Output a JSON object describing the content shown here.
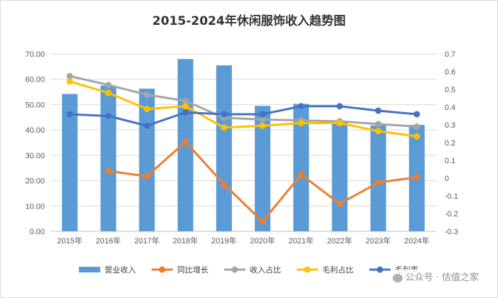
{
  "chart_data": {
    "type": "bar+line",
    "title": "2015-2024年休闲服饰收入趋势图",
    "categories": [
      "2015年",
      "2016年",
      "2017年",
      "2018年",
      "2019年",
      "2020年",
      "2021年",
      "2022年",
      "2023年",
      "2024年"
    ],
    "left_axis": {
      "range": [
        0,
        70
      ],
      "ticks": [
        "0.00",
        "10.00",
        "20.00",
        "30.00",
        "40.00",
        "50.00",
        "60.00",
        "70.00"
      ]
    },
    "right_axis": {
      "range": [
        -0.3,
        0.7
      ],
      "ticks": [
        "-0.3",
        "-0.2",
        "-0.1",
        "0",
        "0.1",
        "0.2",
        "0.3",
        "0.4",
        "0.5",
        "0.6",
        "0.7"
      ]
    },
    "series": [
      {
        "name": "营业收入",
        "kind": "bar",
        "axis": "left",
        "color": "#5b9bd5",
        "values": [
          54.2,
          57.5,
          56.3,
          68.0,
          65.5,
          49.5,
          50.3,
          43.5,
          41.8,
          42.0
        ]
      },
      {
        "name": "同比增长",
        "kind": "line",
        "axis": "right",
        "color": "#ed7d31",
        "values": [
          null,
          0.04,
          0.01,
          0.205,
          -0.035,
          -0.245,
          0.02,
          -0.145,
          -0.025,
          0.005
        ]
      },
      {
        "name": "收入占比",
        "kind": "line",
        "axis": "right",
        "color": "#a5a5a5",
        "values": [
          0.575,
          0.525,
          0.47,
          0.435,
          0.34,
          0.33,
          0.325,
          0.32,
          0.305,
          0.29
        ]
      },
      {
        "name": "毛利占比",
        "kind": "line",
        "axis": "right",
        "color": "#ffc000",
        "values": [
          0.545,
          0.48,
          0.39,
          0.405,
          0.285,
          0.295,
          0.31,
          0.31,
          0.265,
          0.235
        ]
      },
      {
        "name": "毛利率",
        "kind": "line",
        "axis": "right",
        "color": "#4472c4",
        "values": [
          0.36,
          0.35,
          0.295,
          0.37,
          0.36,
          0.36,
          0.405,
          0.405,
          0.38,
          0.36
        ]
      }
    ]
  },
  "watermark": "公众号 · 估值之家"
}
